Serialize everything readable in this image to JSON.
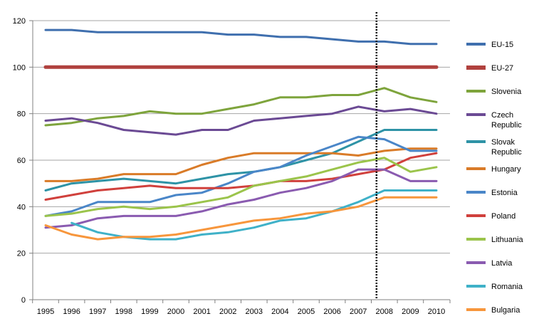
{
  "chart_data": {
    "type": "line",
    "title": "",
    "xlabel": "",
    "ylabel": "",
    "x": [
      1995,
      1996,
      1997,
      1998,
      1999,
      2000,
      2001,
      2002,
      2003,
      2004,
      2005,
      2006,
      2007,
      2008,
      2009,
      2010
    ],
    "ylim": [
      0,
      120
    ],
    "yticks": [
      0,
      20,
      40,
      60,
      80,
      100,
      120
    ],
    "grid": "horizontal",
    "legend": "right",
    "vertical_marker": {
      "x": 2007.7,
      "style": "dotted",
      "color": "#000000"
    },
    "series": [
      {
        "name": "EU-15",
        "color": "#3f6fae",
        "width": 3,
        "values": [
          116,
          116,
          115,
          115,
          115,
          115,
          115,
          114,
          114,
          113,
          113,
          112,
          111,
          111,
          110,
          110
        ]
      },
      {
        "name": "EU-27",
        "color": "#b0413e",
        "width": 5,
        "values": [
          100,
          100,
          100,
          100,
          100,
          100,
          100,
          100,
          100,
          100,
          100,
          100,
          100,
          100,
          100,
          100
        ]
      },
      {
        "name": "Slovenia",
        "color": "#7ea43c",
        "width": 3,
        "values": [
          75,
          76,
          78,
          79,
          81,
          80,
          80,
          82,
          84,
          87,
          87,
          88,
          88,
          91,
          87,
          85
        ]
      },
      {
        "name": "Czech Republic",
        "color": "#6b4a94",
        "width": 3,
        "values": [
          77,
          78,
          76,
          73,
          72,
          71,
          73,
          73,
          77,
          78,
          79,
          80,
          83,
          81,
          82,
          80
        ]
      },
      {
        "name": "Slovak Republic",
        "color": "#2e93a6",
        "width": 3,
        "values": [
          47,
          50,
          51,
          52,
          51,
          50,
          52,
          54,
          55,
          57,
          60,
          63,
          68,
          73,
          73,
          73
        ]
      },
      {
        "name": "Hungary",
        "color": "#d97b28",
        "width": 3,
        "values": [
          51,
          51,
          52,
          54,
          54,
          54,
          58,
          61,
          63,
          63,
          63,
          63,
          62,
          64,
          65,
          65
        ]
      },
      {
        "name": "Estonia",
        "color": "#4a86c8",
        "width": 3,
        "values": [
          36,
          38,
          42,
          42,
          42,
          45,
          46,
          50,
          55,
          57,
          62,
          66,
          70,
          69,
          64,
          64
        ]
      },
      {
        "name": "Poland",
        "color": "#d0403c",
        "width": 3,
        "values": [
          43,
          45,
          47,
          48,
          49,
          48,
          48,
          48,
          49,
          51,
          51,
          52,
          54,
          56,
          61,
          63
        ]
      },
      {
        "name": "Lithuania",
        "color": "#9bc44b",
        "width": 3,
        "values": [
          36,
          37,
          39,
          40,
          39,
          40,
          42,
          44,
          49,
          51,
          53,
          56,
          59,
          61,
          55,
          57
        ]
      },
      {
        "name": "Latvia",
        "color": "#8a5bb0",
        "width": 3,
        "values": [
          31,
          32,
          35,
          36,
          36,
          36,
          38,
          41,
          43,
          46,
          48,
          51,
          56,
          56,
          51,
          51
        ]
      },
      {
        "name": "Romania",
        "color": "#3fb1c8",
        "width": 3,
        "values": [
          null,
          33,
          29,
          27,
          26,
          26,
          28,
          29,
          31,
          34,
          35,
          38,
          42,
          47,
          47,
          47
        ]
      },
      {
        "name": "Bulgaria",
        "color": "#f7963c",
        "width": 3,
        "values": [
          32,
          28,
          26,
          27,
          27,
          28,
          30,
          32,
          34,
          35,
          37,
          38,
          40,
          44,
          44,
          44
        ]
      }
    ],
    "legend_labels": [
      [
        "EU-15"
      ],
      [
        "EU-27"
      ],
      [
        "Slovenia"
      ],
      [
        "Czech",
        "Republic"
      ],
      [
        "Slovak",
        "Republic"
      ],
      [
        "Hungary"
      ],
      [
        "Estonia"
      ],
      [
        "Poland"
      ],
      [
        "Lithuania"
      ],
      [
        "Latvia"
      ],
      [
        "Romania"
      ],
      [
        "Bulgaria"
      ]
    ]
  }
}
